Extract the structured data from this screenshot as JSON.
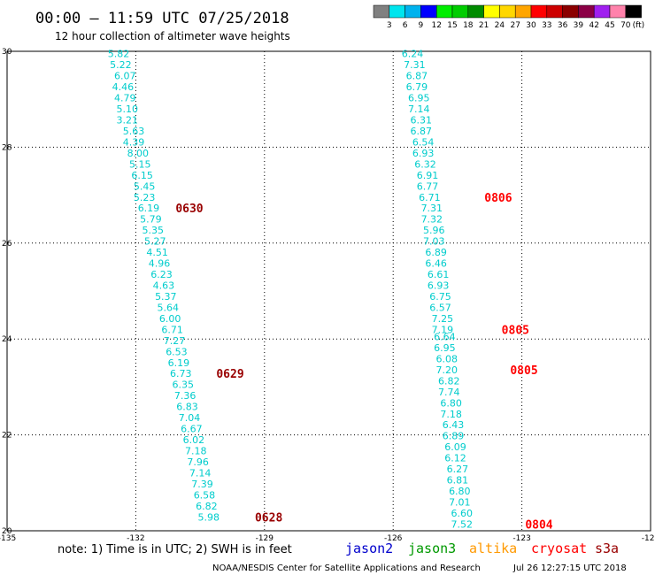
{
  "title": "00:00 — 11:59 UTC 07/25/2018",
  "subtitle": "12 hour collection of altimeter wave heights",
  "note": "note: 1) Time is in UTC; 2) SWH is in feet",
  "footer_left": "NOAA/NESDIS Center for Satellite Applications and Research",
  "footer_right": "Jul 26 12:27:15 UTC 2018",
  "satellites": [
    {
      "name": "jason2",
      "color": "#0000cc"
    },
    {
      "name": "jason3",
      "color": "#009900"
    },
    {
      "name": "altika",
      "color": "#ff9900"
    },
    {
      "name": "cryosat",
      "color": "#ff0000"
    },
    {
      "name": "s3a",
      "color": "#990000"
    }
  ],
  "colorbar": {
    "colors": [
      "#808080",
      "#00e5ee",
      "#00b2ee",
      "#0000ff",
      "#00ee00",
      "#00cd00",
      "#008b00",
      "#ffff00",
      "#ffd700",
      "#ffa500",
      "#ff0000",
      "#cd0000",
      "#8b0000",
      "#8b0045",
      "#a020f0",
      "#ff82ab",
      "#000000"
    ],
    "labels": [
      "3",
      "6",
      "9",
      "12",
      "15",
      "18",
      "21",
      "24",
      "27",
      "30",
      "33",
      "36",
      "39",
      "42",
      "45",
      "70"
    ],
    "unit": "(ft)"
  },
  "chart_data": {
    "type": "scatter",
    "title": "00:00 — 11:59 UTC 07/25/2018",
    "subtitle": "12 hour collection of altimeter wave heights",
    "xlabel": "",
    "ylabel": "",
    "x_ticks": [
      "-135",
      "-132",
      "-129",
      "-126",
      "-123",
      "-120"
    ],
    "y_ticks": [
      "20",
      "22",
      "24",
      "26",
      "28",
      "30"
    ],
    "xlim": [
      -135,
      -120
    ],
    "ylim": [
      20,
      30
    ],
    "grid": true,
    "value_color": "#00cccc",
    "series": [
      {
        "name": "track-west",
        "points": [
          {
            "x": -132.4,
            "y": 29.95,
            "v": "5.82"
          },
          {
            "x": -132.35,
            "y": 29.72,
            "v": "5.22"
          },
          {
            "x": -132.25,
            "y": 29.49,
            "v": "6.07"
          },
          {
            "x": -132.3,
            "y": 29.26,
            "v": "4.46"
          },
          {
            "x": -132.25,
            "y": 29.03,
            "v": "4.79"
          },
          {
            "x": -132.2,
            "y": 28.8,
            "v": "5.10"
          },
          {
            "x": -132.2,
            "y": 28.57,
            "v": "3.21"
          },
          {
            "x": -132.05,
            "y": 28.34,
            "v": "5.63"
          },
          {
            "x": -132.05,
            "y": 28.11,
            "v": "4.39"
          },
          {
            "x": -131.95,
            "y": 27.88,
            "v": "8.00"
          },
          {
            "x": -131.9,
            "y": 27.65,
            "v": "5.15"
          },
          {
            "x": -131.85,
            "y": 27.42,
            "v": "6.15"
          },
          {
            "x": -131.8,
            "y": 27.19,
            "v": "5.45"
          },
          {
            "x": -131.8,
            "y": 26.96,
            "v": "5.23"
          },
          {
            "x": -131.7,
            "y": 26.73,
            "v": "6.19"
          },
          {
            "x": -131.65,
            "y": 26.5,
            "v": "5.79"
          },
          {
            "x": -131.6,
            "y": 26.27,
            "v": "5.35"
          },
          {
            "x": -131.55,
            "y": 26.04,
            "v": "5.27"
          },
          {
            "x": -131.5,
            "y": 25.81,
            "v": "4.51"
          },
          {
            "x": -131.45,
            "y": 25.58,
            "v": "4.96"
          },
          {
            "x": -131.4,
            "y": 25.35,
            "v": "6.23"
          },
          {
            "x": -131.35,
            "y": 25.12,
            "v": "4.63"
          },
          {
            "x": -131.3,
            "y": 24.89,
            "v": "5.37"
          },
          {
            "x": -131.25,
            "y": 24.66,
            "v": "5.64"
          },
          {
            "x": -131.2,
            "y": 24.43,
            "v": "6.00"
          },
          {
            "x": -131.15,
            "y": 24.2,
            "v": "6.71"
          },
          {
            "x": -131.1,
            "y": 23.97,
            "v": "7.27"
          },
          {
            "x": -131.05,
            "y": 23.74,
            "v": "6.53"
          },
          {
            "x": -131.0,
            "y": 23.51,
            "v": "6.19"
          },
          {
            "x": -130.95,
            "y": 23.28,
            "v": "6.73"
          },
          {
            "x": -130.9,
            "y": 23.05,
            "v": "6.35"
          },
          {
            "x": -130.85,
            "y": 22.82,
            "v": "7.36"
          },
          {
            "x": -130.8,
            "y": 22.59,
            "v": "6.83"
          },
          {
            "x": -130.75,
            "y": 22.36,
            "v": "7.04"
          },
          {
            "x": -130.7,
            "y": 22.13,
            "v": "6.67"
          },
          {
            "x": -130.65,
            "y": 21.9,
            "v": "6.02"
          },
          {
            "x": -130.6,
            "y": 21.67,
            "v": "7.18"
          },
          {
            "x": -130.55,
            "y": 21.44,
            "v": "7.96"
          },
          {
            "x": -130.5,
            "y": 21.21,
            "v": "7.14"
          },
          {
            "x": -130.45,
            "y": 20.98,
            "v": "7.39"
          },
          {
            "x": -130.4,
            "y": 20.75,
            "v": "6.58"
          },
          {
            "x": -130.35,
            "y": 20.52,
            "v": "6.82"
          },
          {
            "x": -130.3,
            "y": 20.29,
            "v": "5.98"
          }
        ],
        "passes": [
          {
            "x": -130.75,
            "y": 26.73,
            "label": "0630",
            "color": "#990000"
          },
          {
            "x": -129.8,
            "y": 23.28,
            "label": "0629",
            "color": "#990000"
          },
          {
            "x": -128.9,
            "y": 20.29,
            "label": "0628",
            "color": "#990000"
          }
        ]
      },
      {
        "name": "track-east",
        "points": [
          {
            "x": -125.55,
            "y": 29.95,
            "v": "6.24"
          },
          {
            "x": -125.5,
            "y": 29.72,
            "v": "7.31"
          },
          {
            "x": -125.45,
            "y": 29.49,
            "v": "6.87"
          },
          {
            "x": -125.45,
            "y": 29.26,
            "v": "6.79"
          },
          {
            "x": -125.4,
            "y": 29.03,
            "v": "6.95"
          },
          {
            "x": -125.4,
            "y": 28.8,
            "v": "7.14"
          },
          {
            "x": -125.35,
            "y": 28.57,
            "v": "6.31"
          },
          {
            "x": -125.35,
            "y": 28.34,
            "v": "6.87"
          },
          {
            "x": -125.3,
            "y": 28.11,
            "v": "6.54"
          },
          {
            "x": -125.3,
            "y": 27.88,
            "v": "6.93"
          },
          {
            "x": -125.25,
            "y": 27.65,
            "v": "6.32"
          },
          {
            "x": -125.2,
            "y": 27.42,
            "v": "6.91"
          },
          {
            "x": -125.2,
            "y": 27.19,
            "v": "6.77"
          },
          {
            "x": -125.15,
            "y": 26.96,
            "v": "6.71"
          },
          {
            "x": -125.1,
            "y": 26.73,
            "v": "7.31"
          },
          {
            "x": -125.1,
            "y": 26.5,
            "v": "7.32"
          },
          {
            "x": -125.05,
            "y": 26.27,
            "v": "5.96"
          },
          {
            "x": -125.05,
            "y": 26.04,
            "v": "7.03"
          },
          {
            "x": -125.0,
            "y": 25.81,
            "v": "6.89"
          },
          {
            "x": -125.0,
            "y": 25.58,
            "v": "6.46"
          },
          {
            "x": -124.95,
            "y": 25.35,
            "v": "6.61"
          },
          {
            "x": -124.95,
            "y": 25.12,
            "v": "6.93"
          },
          {
            "x": -124.9,
            "y": 24.89,
            "v": "6.75"
          },
          {
            "x": -124.9,
            "y": 24.66,
            "v": "6.57"
          },
          {
            "x": -124.85,
            "y": 24.43,
            "v": "7.25"
          },
          {
            "x": -124.85,
            "y": 24.2,
            "v": "7.19"
          },
          {
            "x": -124.8,
            "y": 24.05,
            "v": "6.64"
          },
          {
            "x": -124.8,
            "y": 23.82,
            "v": "6.95"
          },
          {
            "x": -124.75,
            "y": 23.59,
            "v": "6.08"
          },
          {
            "x": -124.75,
            "y": 23.36,
            "v": "7.20"
          },
          {
            "x": -124.7,
            "y": 23.13,
            "v": "6.82"
          },
          {
            "x": -124.7,
            "y": 22.9,
            "v": "7.74"
          },
          {
            "x": -124.65,
            "y": 22.67,
            "v": "6.80"
          },
          {
            "x": -124.65,
            "y": 22.44,
            "v": "7.18"
          },
          {
            "x": -124.6,
            "y": 22.21,
            "v": "6.43"
          },
          {
            "x": -124.6,
            "y": 21.98,
            "v": "6.89"
          },
          {
            "x": -124.55,
            "y": 21.75,
            "v": "6.09"
          },
          {
            "x": -124.55,
            "y": 21.52,
            "v": "6.12"
          },
          {
            "x": -124.5,
            "y": 21.29,
            "v": "6.27"
          },
          {
            "x": -124.5,
            "y": 21.06,
            "v": "6.81"
          },
          {
            "x": -124.45,
            "y": 20.83,
            "v": "6.80"
          },
          {
            "x": -124.45,
            "y": 20.6,
            "v": "7.01"
          },
          {
            "x": -124.4,
            "y": 20.37,
            "v": "6.60"
          },
          {
            "x": -124.4,
            "y": 20.14,
            "v": "7.52"
          }
        ],
        "passes": [
          {
            "x": -123.55,
            "y": 26.96,
            "label": "0806",
            "color": "#ff0000"
          },
          {
            "x": -123.15,
            "y": 24.2,
            "label": "0805",
            "color": "#ff0000"
          },
          {
            "x": -122.95,
            "y": 23.36,
            "label": "0805",
            "color": "#ff0000"
          },
          {
            "x": -122.6,
            "y": 20.14,
            "label": "0804",
            "color": "#ff0000"
          }
        ]
      }
    ]
  }
}
